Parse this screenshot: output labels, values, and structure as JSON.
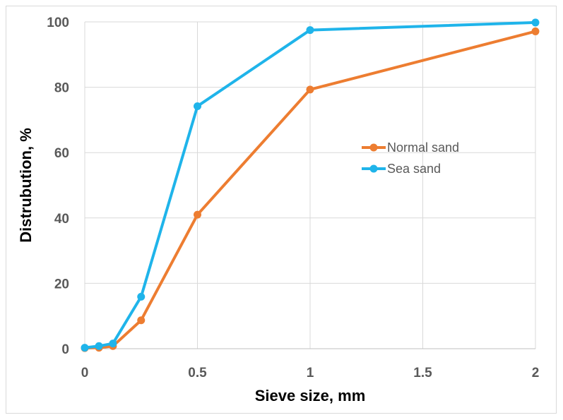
{
  "chart_data": {
    "type": "line",
    "title": "",
    "xlabel": "Sieve size, mm",
    "ylabel": "Distrubution, %",
    "xlim": [
      0,
      2
    ],
    "ylim": [
      0,
      100
    ],
    "x_ticks": [
      "0",
      "0.5",
      "1",
      "1.5",
      "2"
    ],
    "y_ticks": [
      "0",
      "20",
      "40",
      "60",
      "80",
      "100"
    ],
    "grid": true,
    "legend_position": "right",
    "series": [
      {
        "name": "Normal sand",
        "color": "#ED7D31",
        "points": [
          {
            "x": 0,
            "y": 0.2
          },
          {
            "x": 0.063,
            "y": 0.3
          },
          {
            "x": 0.125,
            "y": 0.8
          },
          {
            "x": 0.25,
            "y": 8.7
          },
          {
            "x": 0.5,
            "y": 41
          },
          {
            "x": 1,
            "y": 79.3
          },
          {
            "x": 2,
            "y": 97.1
          }
        ]
      },
      {
        "name": "Sea sand",
        "color": "#1FB4EA",
        "points": [
          {
            "x": 0,
            "y": 0.3
          },
          {
            "x": 0.063,
            "y": 0.8
          },
          {
            "x": 0.125,
            "y": 1.6
          },
          {
            "x": 0.25,
            "y": 15.9
          },
          {
            "x": 0.5,
            "y": 74.2
          },
          {
            "x": 1,
            "y": 97.5
          },
          {
            "x": 2,
            "y": 99.8
          }
        ]
      }
    ]
  }
}
